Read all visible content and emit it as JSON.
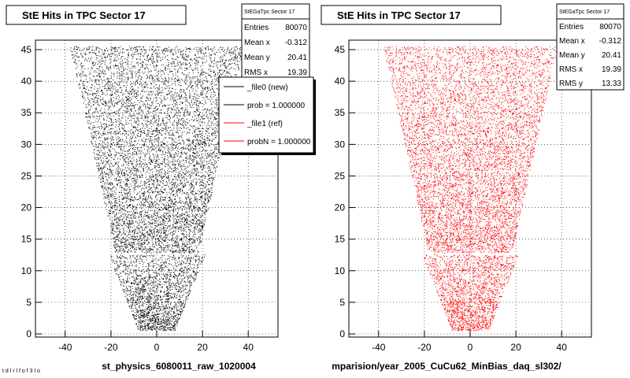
{
  "chart_data": [
    {
      "type": "scatter",
      "title": "StE Hits in TPC Sector 17",
      "xlabel": "st_physics_6080011_raw_1020004",
      "ylabel": "",
      "xlim": [
        -53,
        53
      ],
      "ylim": [
        -0.5,
        46.5
      ],
      "xticks": [
        -40,
        -20,
        0,
        20,
        40
      ],
      "yticks": [
        0,
        5,
        10,
        15,
        20,
        25,
        30,
        35,
        40,
        45
      ],
      "grid": true,
      "marker_color": "#000000",
      "stats": {
        "header": "StEGaTpc Sector 17",
        "rows": [
          {
            "label": "Entries",
            "value": "80070"
          },
          {
            "label": "Mean x",
            "value": "-0.312"
          },
          {
            "label": "Mean y",
            "value": "20.41"
          },
          {
            "label": "RMS x",
            "value": "19.39"
          }
        ]
      },
      "legend": {
        "placement": "top-right",
        "entries": [
          {
            "label": "_file0 (new)",
            "color": "#000000"
          },
          {
            "label": "prob = 1.000000",
            "color": "#000000"
          },
          {
            "label": "_file1 (ref)",
            "color": "#ff0000"
          },
          {
            "label": "probN = 1.000000",
            "color": "#ff0000"
          }
        ]
      },
      "pad_shape": {
        "outer_upper": [
          [
            12.5,
            28.5
          ],
          [
            45.5,
            47
          ]
        ],
        "outer_lower": [
          [
            12.5,
            18
          ],
          [
            45.5,
            38
          ]
        ],
        "inner_upper": [
          [
            0.5,
            6
          ],
          [
            12.5,
            9.5
          ]
        ],
        "inner_lower": [
          [
            0.5,
            8
          ],
          [
            12.5,
            21
          ]
        ]
      }
    },
    {
      "type": "scatter",
      "title": "StE Hits in TPC Sector 17",
      "xlabel": "mparision/year_2005_CuCu62_MinBias_daq_sl302/",
      "ylabel": "",
      "xlim": [
        -53,
        53
      ],
      "ylim": [
        -0.5,
        46.5
      ],
      "xticks": [
        -40,
        -20,
        0,
        20,
        40
      ],
      "yticks": [
        0,
        5,
        10,
        15,
        20,
        25,
        30,
        35,
        40,
        45
      ],
      "grid": true,
      "marker_color": "#ff0000",
      "stats": {
        "header": "StEGaTpc Sector 17",
        "rows": [
          {
            "label": "Entries",
            "value": "80070"
          },
          {
            "label": "Mean x",
            "value": "-0.312"
          },
          {
            "label": "Mean y",
            "value": "20.41"
          },
          {
            "label": "RMS x",
            "value": "19.39"
          },
          {
            "label": "RMS y",
            "value": "13.33"
          }
        ]
      }
    }
  ],
  "footer": {
    "corner_text": "t d  l r  l  f  o  f  3  l  o"
  }
}
